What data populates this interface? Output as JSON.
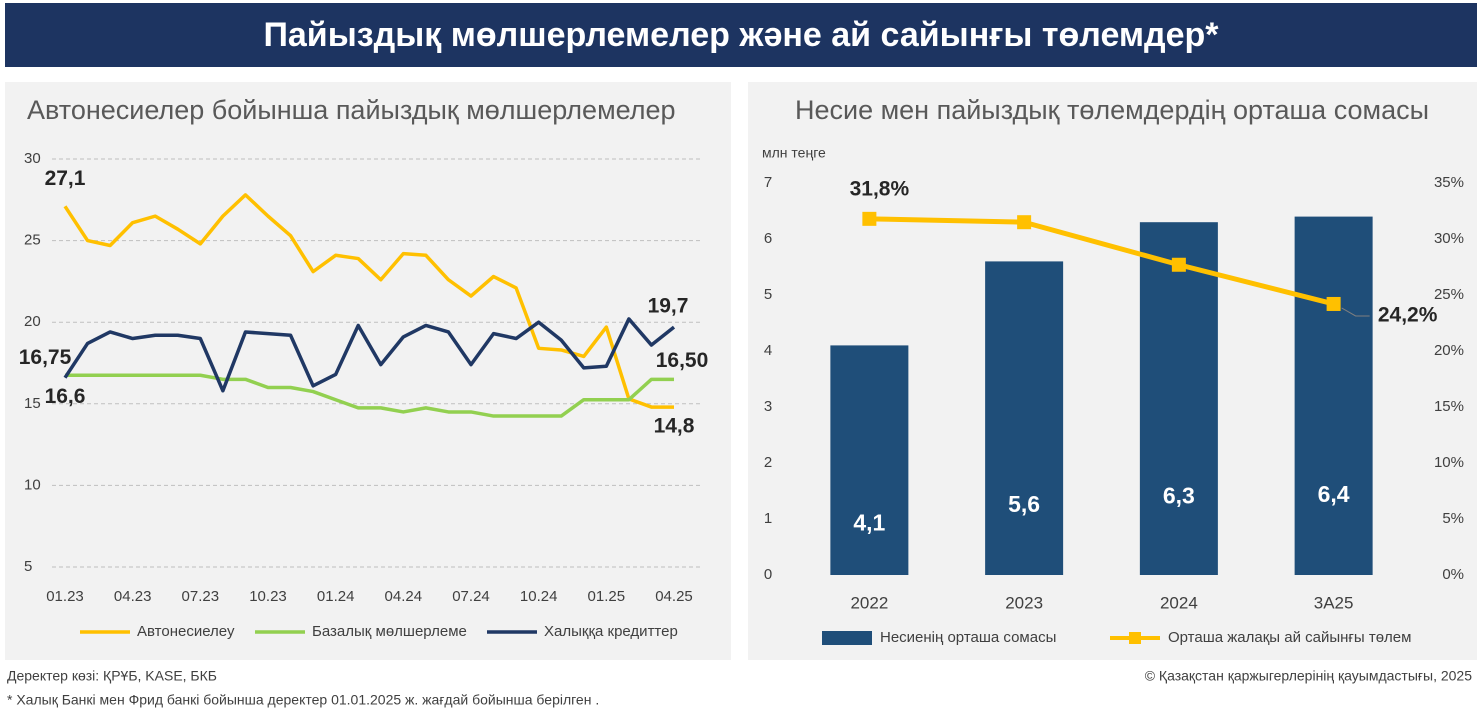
{
  "header": {
    "title": "Пайыздық мөлшерлемелер және ай сайынғы төлемдер*"
  },
  "chart_data": [
    {
      "type": "line",
      "title": "Автонесиелер бойынша пайыздық мөлшерлемелер",
      "categories": [
        "01.23",
        null,
        null,
        "04.23",
        null,
        null,
        "07.23",
        null,
        null,
        "10.23",
        null,
        null,
        "01.24",
        null,
        null,
        "04.24",
        null,
        null,
        "07.24",
        null,
        null,
        "10.24",
        null,
        null,
        "01.25",
        null,
        null,
        "04.25"
      ],
      "ylim": [
        5,
        30
      ],
      "yticks": [
        5,
        10,
        15,
        20,
        25,
        30
      ],
      "grid": true,
      "legend": "bottom",
      "series": [
        {
          "name": "Автонесиелеу",
          "color": "#ffc000",
          "values": [
            27.1,
            25.0,
            24.7,
            26.1,
            26.5,
            25.7,
            24.8,
            26.5,
            27.8,
            26.5,
            25.3,
            23.1,
            24.1,
            23.9,
            22.6,
            24.2,
            24.1,
            22.6,
            21.6,
            22.8,
            22.1,
            18.4,
            18.3,
            17.9,
            19.7,
            15.3,
            14.8,
            14.8
          ],
          "value_labels": [
            "27,1",
            null,
            null,
            null,
            null,
            null,
            null,
            null,
            null,
            null,
            null,
            null,
            null,
            null,
            null,
            null,
            null,
            null,
            null,
            null,
            null,
            null,
            null,
            null,
            null,
            null,
            null,
            "14,8"
          ]
        },
        {
          "name": "Базалық мөлшерлеме",
          "color": "#92d050",
          "values": [
            16.75,
            16.75,
            16.75,
            16.75,
            16.75,
            16.75,
            16.75,
            16.5,
            16.5,
            16,
            16,
            15.75,
            15.25,
            14.75,
            14.75,
            14.5,
            14.75,
            14.5,
            14.5,
            14.25,
            14.25,
            14.25,
            14.25,
            15.25,
            15.25,
            15.25,
            16.5,
            16.5
          ],
          "value_labels": [
            "16,75",
            null,
            null,
            null,
            null,
            null,
            null,
            null,
            null,
            null,
            null,
            null,
            null,
            null,
            null,
            null,
            null,
            null,
            null,
            null,
            null,
            null,
            null,
            null,
            null,
            null,
            null,
            "16,50"
          ]
        },
        {
          "name": "Халыққа кредиттер",
          "color": "#203864",
          "values": [
            16.6,
            18.7,
            19.4,
            19.0,
            19.2,
            19.2,
            19.0,
            15.8,
            19.4,
            19.3,
            19.2,
            16.1,
            16.8,
            19.8,
            17.4,
            19.1,
            19.8,
            19.4,
            17.4,
            19.3,
            19.0,
            20.0,
            18.9,
            17.2,
            17.3,
            20.2,
            18.6,
            19.7
          ],
          "value_labels": [
            "16,6",
            null,
            null,
            null,
            null,
            null,
            null,
            null,
            null,
            null,
            null,
            null,
            null,
            null,
            null,
            null,
            null,
            null,
            null,
            null,
            null,
            null,
            null,
            null,
            null,
            null,
            null,
            "19,7"
          ]
        }
      ]
    },
    {
      "type": "bar",
      "title": "Несие мен пайыздық төлемдердің орташа сомасы",
      "y_label": "млн теңге",
      "categories": [
        "2022",
        "2023",
        "2024",
        "3A25"
      ],
      "ylim": [
        0,
        7
      ],
      "yticks": [
        0,
        1,
        2,
        3,
        4,
        5,
        6,
        7
      ],
      "y2lim": [
        0,
        35
      ],
      "y2ticks": [
        {
          "value": 0,
          "label": "0%"
        },
        {
          "value": 5,
          "label": "5%"
        },
        {
          "value": 10,
          "label": "10%"
        },
        {
          "value": 15,
          "label": "15%"
        },
        {
          "value": 20,
          "label": "20%"
        },
        {
          "value": 25,
          "label": "25%"
        },
        {
          "value": 30,
          "label": "30%"
        },
        {
          "value": 35,
          "label": "35%"
        }
      ],
      "legend": "bottom",
      "series": [
        {
          "name": "Несиенің орташа сомасы",
          "color": "#1f4e79",
          "values": [
            4.1,
            5.6,
            6.3,
            6.4
          ],
          "value_labels": [
            "4,1",
            "5,6",
            "6,3",
            "6,4"
          ]
        },
        {
          "name": "Орташа жалақы ай сайынғы төлем",
          "color": "#ffc000",
          "type": "line",
          "axis": "y2",
          "values": [
            31.8,
            31.5,
            27.7,
            24.2
          ],
          "value_labels": [
            "31,8%",
            null,
            null,
            "24,2%"
          ]
        }
      ]
    }
  ],
  "footer": {
    "source": "Деректер көзі: ҚРҰБ, KASE, БКБ",
    "note": "* Халық Банкі мен Фрид банкі бойынша деректер 01.01.2025 ж. жағдай бойынша берілген .",
    "copyright": "© Қазақстан қаржыгерлерінің қауымдастығы, 2025"
  }
}
